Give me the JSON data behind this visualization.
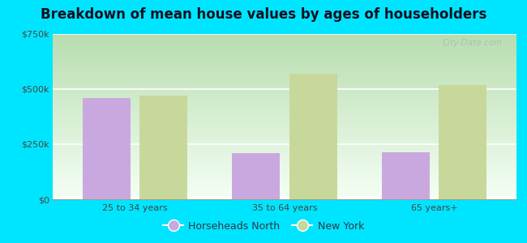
{
  "title": "Breakdown of mean house values by ages of householders",
  "categories": [
    "25 to 34 years",
    "35 to 64 years",
    "65 years+"
  ],
  "horseheads_north": [
    460000,
    210000,
    215000
  ],
  "new_york": [
    470000,
    570000,
    520000
  ],
  "bar_color_horseheads": "#c9a8e0",
  "bar_color_newyork": "#c8d89a",
  "ylim": [
    0,
    750000
  ],
  "yticks": [
    0,
    250000,
    500000,
    750000
  ],
  "ytick_labels": [
    "$0",
    "$250k",
    "$500k",
    "$750k"
  ],
  "background_color": "#00e5ff",
  "grad_top": "#b8ddb0",
  "grad_bottom": "#f5fff5",
  "legend_label1": "Horseheads North",
  "legend_label2": "New York",
  "watermark": "City-Data.com",
  "bar_width": 0.32,
  "title_fontsize": 12,
  "tick_fontsize": 8,
  "legend_fontsize": 9
}
